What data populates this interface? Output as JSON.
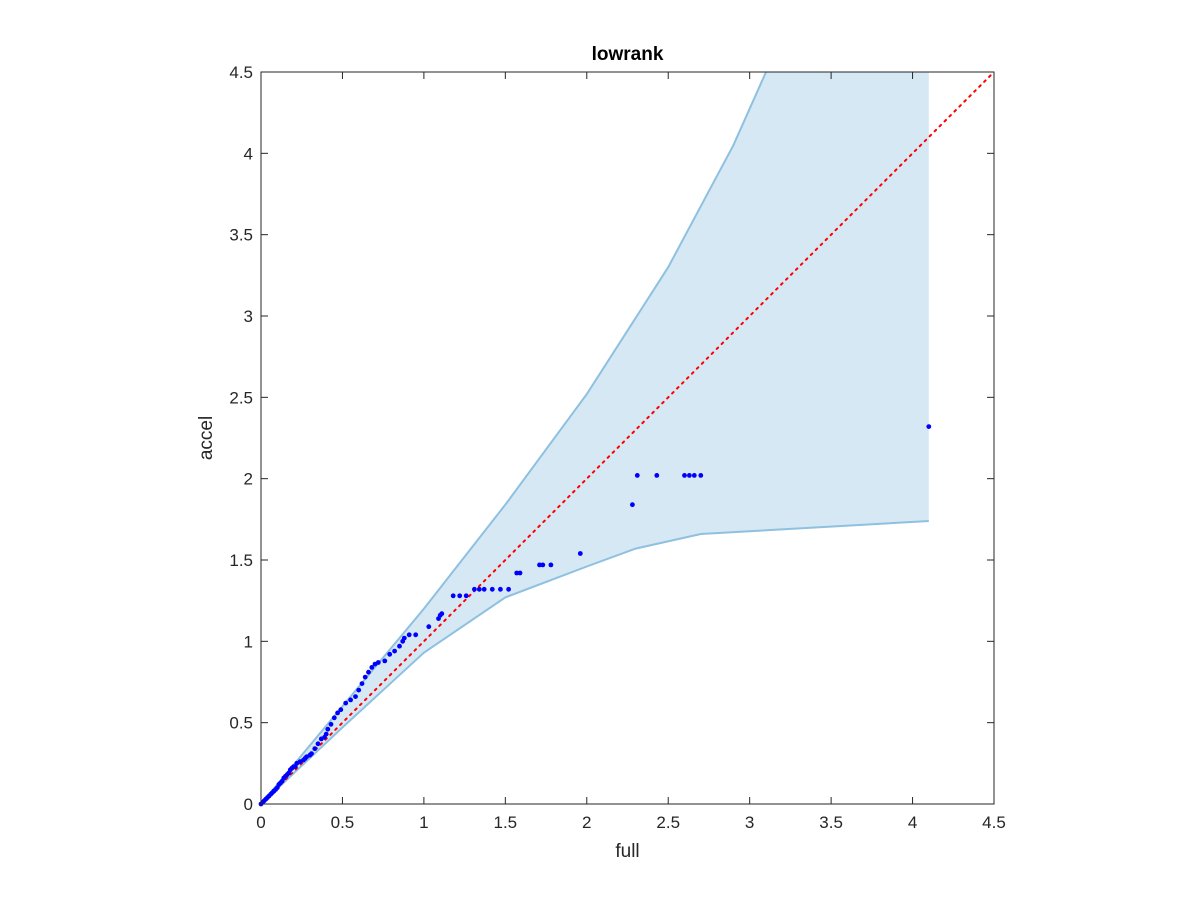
{
  "chart_data": {
    "type": "scatter",
    "title": "lowrank",
    "xlabel": "full",
    "ylabel": "accel",
    "xlim": [
      0,
      4.5
    ],
    "ylim": [
      0,
      4.5
    ],
    "xticks": [
      0,
      0.5,
      1,
      1.5,
      2,
      2.5,
      3,
      3.5,
      4,
      4.5
    ],
    "yticks": [
      0,
      0.5,
      1,
      1.5,
      2,
      2.5,
      3,
      3.5,
      4,
      4.5
    ],
    "xtick_labels": [
      "0",
      "0.5",
      "1",
      "1.5",
      "2",
      "2.5",
      "3",
      "3.5",
      "4",
      "4.5"
    ],
    "ytick_labels": [
      "0",
      "0.5",
      "1",
      "1.5",
      "2",
      "2.5",
      "3",
      "3.5",
      "4",
      "4.5"
    ],
    "grid": false,
    "box": true,
    "colors": {
      "points": "#0000ff",
      "band_fill": "#d6e8f4",
      "band_edge": "#8ec0e0",
      "reference_line": "#ff0000",
      "axes": "#262626"
    },
    "band": {
      "upper": [
        [
          0,
          0
        ],
        [
          0.5,
          0.6
        ],
        [
          1,
          1.2
        ],
        [
          1.5,
          1.84
        ],
        [
          2,
          2.52
        ],
        [
          2.5,
          3.3
        ],
        [
          2.9,
          4.05
        ],
        [
          3.1,
          4.5
        ],
        [
          4.1,
          4.5
        ]
      ],
      "lower": [
        [
          0,
          0
        ],
        [
          0.5,
          0.47
        ],
        [
          1,
          0.93
        ],
        [
          1.5,
          1.27
        ],
        [
          2,
          1.46
        ],
        [
          2.3,
          1.57
        ],
        [
          2.7,
          1.66
        ],
        [
          4.1,
          1.74
        ]
      ]
    },
    "reference_line": {
      "style": "dotted",
      "x": [
        0,
        4.5
      ],
      "y": [
        0,
        4.5
      ]
    },
    "points": [
      [
        0.0,
        0.0
      ],
      [
        0.01,
        0.01
      ],
      [
        0.02,
        0.02
      ],
      [
        0.03,
        0.03
      ],
      [
        0.04,
        0.04
      ],
      [
        0.05,
        0.05
      ],
      [
        0.06,
        0.06
      ],
      [
        0.07,
        0.07
      ],
      [
        0.08,
        0.08
      ],
      [
        0.09,
        0.09
      ],
      [
        0.1,
        0.1
      ],
      [
        0.11,
        0.12
      ],
      [
        0.12,
        0.13
      ],
      [
        0.13,
        0.14
      ],
      [
        0.14,
        0.16
      ],
      [
        0.15,
        0.17
      ],
      [
        0.16,
        0.18
      ],
      [
        0.17,
        0.19
      ],
      [
        0.18,
        0.21
      ],
      [
        0.19,
        0.22
      ],
      [
        0.2,
        0.23
      ],
      [
        0.21,
        0.23
      ],
      [
        0.22,
        0.25
      ],
      [
        0.24,
        0.26
      ],
      [
        0.26,
        0.27
      ],
      [
        0.27,
        0.28
      ],
      [
        0.28,
        0.29
      ],
      [
        0.3,
        0.3
      ],
      [
        0.31,
        0.31
      ],
      [
        0.33,
        0.34
      ],
      [
        0.35,
        0.37
      ],
      [
        0.37,
        0.4
      ],
      [
        0.39,
        0.41
      ],
      [
        0.4,
        0.43
      ],
      [
        0.41,
        0.46
      ],
      [
        0.43,
        0.49
      ],
      [
        0.45,
        0.53
      ],
      [
        0.47,
        0.56
      ],
      [
        0.49,
        0.58
      ],
      [
        0.52,
        0.62
      ],
      [
        0.55,
        0.64
      ],
      [
        0.58,
        0.66
      ],
      [
        0.6,
        0.7
      ],
      [
        0.62,
        0.74
      ],
      [
        0.64,
        0.78
      ],
      [
        0.66,
        0.81
      ],
      [
        0.68,
        0.84
      ],
      [
        0.7,
        0.86
      ],
      [
        0.72,
        0.87
      ],
      [
        0.76,
        0.88
      ],
      [
        0.79,
        0.92
      ],
      [
        0.82,
        0.94
      ],
      [
        0.85,
        0.97
      ],
      [
        0.87,
        1.0
      ],
      [
        0.88,
        1.02
      ],
      [
        0.91,
        1.04
      ],
      [
        0.95,
        1.04
      ],
      [
        1.03,
        1.09
      ],
      [
        1.09,
        1.14
      ],
      [
        1.1,
        1.16
      ],
      [
        1.11,
        1.17
      ],
      [
        1.18,
        1.28
      ],
      [
        1.22,
        1.28
      ],
      [
        1.26,
        1.28
      ],
      [
        1.31,
        1.32
      ],
      [
        1.34,
        1.32
      ],
      [
        1.37,
        1.32
      ],
      [
        1.42,
        1.32
      ],
      [
        1.47,
        1.32
      ],
      [
        1.52,
        1.32
      ],
      [
        1.57,
        1.42
      ],
      [
        1.59,
        1.42
      ],
      [
        1.71,
        1.47
      ],
      [
        1.73,
        1.47
      ],
      [
        1.78,
        1.47
      ],
      [
        1.96,
        1.54
      ],
      [
        2.28,
        1.84
      ],
      [
        2.31,
        2.02
      ],
      [
        2.43,
        2.02
      ],
      [
        2.6,
        2.02
      ],
      [
        2.63,
        2.02
      ],
      [
        2.66,
        2.02
      ],
      [
        2.7,
        2.02
      ],
      [
        4.1,
        2.32
      ]
    ]
  }
}
